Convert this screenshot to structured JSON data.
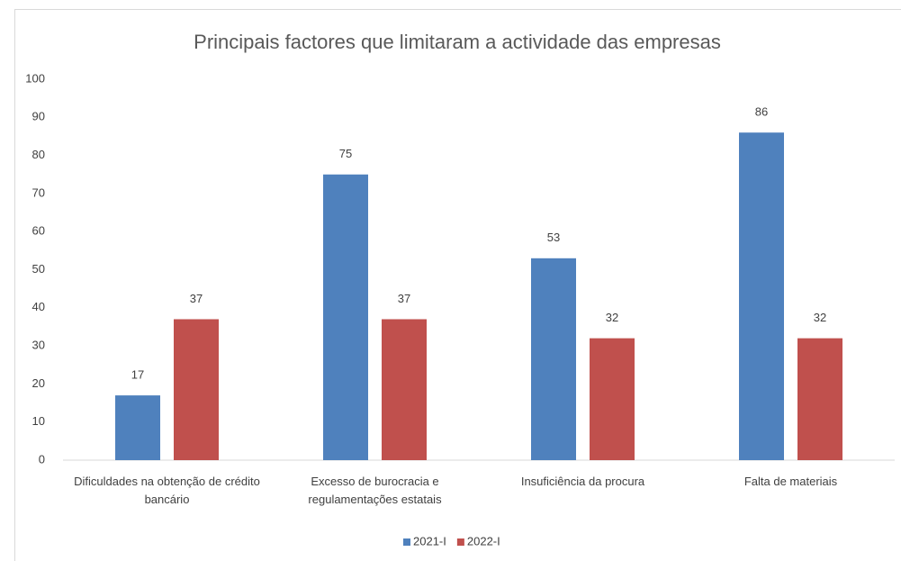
{
  "chart_data": {
    "type": "bar",
    "title": "Principais factores que limitaram a actividade das empresas",
    "categories": [
      "Dificuldades na obtenção de crédito bancário",
      "Excesso de burocracia e regulamentações estatais",
      "Insuficiência da procura",
      "Falta de materiais"
    ],
    "series": [
      {
        "name": "2021-I",
        "color": "#4f81bd",
        "values": [
          17,
          75,
          53,
          86
        ]
      },
      {
        "name": "2022-I",
        "color": "#c0504d",
        "values": [
          37,
          37,
          32,
          32
        ]
      }
    ],
    "ylim": [
      0,
      100
    ],
    "yticks": [
      0,
      10,
      20,
      30,
      40,
      50,
      60,
      70,
      80,
      90,
      100
    ],
    "grid": false,
    "legend": "bottom"
  }
}
